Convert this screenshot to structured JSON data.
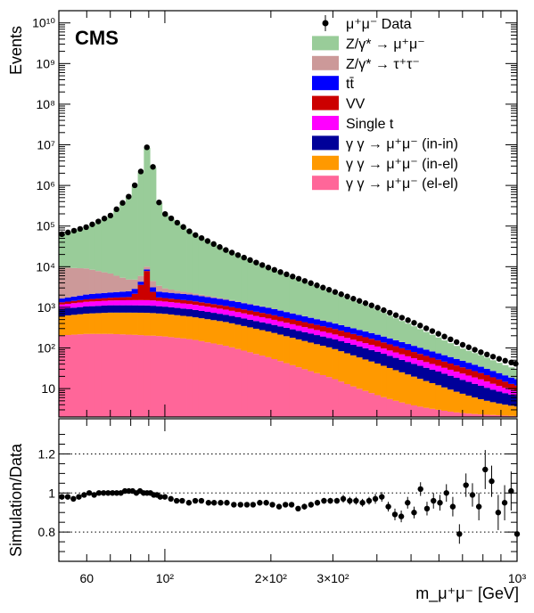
{
  "chart_data": [
    {
      "type": "histogram-stack",
      "experiment_label": "CMS",
      "xlabel": "",
      "ylabel": "Events",
      "x_scale": "log",
      "y_scale": "log",
      "xlim": [
        50,
        1000
      ],
      "ylim": [
        2,
        20000000000
      ],
      "y_tick_labels": [
        "10",
        "10²",
        "10³",
        "10⁴",
        "10⁵",
        "10⁶",
        "10⁷",
        "10⁸",
        "10⁹",
        "10¹⁰"
      ],
      "legend_position": "top-right",
      "legend": [
        {
          "key": "data",
          "label": "μ⁺μ⁻ Data",
          "color": "#000000",
          "marker": "point"
        },
        {
          "key": "dy_mumu",
          "label": "Z/γ* → μ⁺μ⁻",
          "color": "#99cc99"
        },
        {
          "key": "dy_tautau",
          "label": "Z/γ* → τ⁺τ⁻",
          "color": "#cc9999"
        },
        {
          "key": "ttbar",
          "label": "tt̄",
          "color": "#0000ff"
        },
        {
          "key": "vv",
          "label": "VV",
          "color": "#cc0000"
        },
        {
          "key": "single_t",
          "label": "Single t",
          "color": "#ff00ff"
        },
        {
          "key": "gg_inin",
          "label": "γ γ → μ⁺μ⁻ (in-in)",
          "color": "#000099"
        },
        {
          "key": "gg_inel",
          "label": "γ γ → μ⁺μ⁻ (in-el)",
          "color": "#ff9900"
        },
        {
          "key": "gg_elel",
          "label": "γ γ → μ⁺μ⁻ (el-el)",
          "color": "#ff6699"
        }
      ],
      "anchors": {
        "x": [
          50,
          60,
          70,
          80,
          86,
          89,
          91,
          93,
          96,
          100,
          120,
          150,
          200,
          300,
          400,
          500,
          600,
          700,
          800,
          900,
          1000
        ],
        "data": [
          60000,
          95000,
          180000,
          600000,
          2500000,
          9000000,
          9000000,
          2000000,
          400000,
          200000,
          65000,
          25000,
          9000,
          2500,
          1000,
          450,
          220,
          120,
          75,
          52,
          40
        ],
        "dy_mumu": [
          52000,
          85000,
          170000,
          580000,
          2400000,
          8800000,
          8800000,
          1900000,
          380000,
          190000,
          61000,
          22500,
          7500,
          1800,
          650,
          250,
          105,
          48,
          30,
          18,
          13
        ],
        "dy_tautau": [
          8000,
          7000,
          4500,
          2200,
          1600,
          1500,
          1500,
          1300,
          1000,
          600,
          200,
          70,
          20,
          5,
          2,
          1,
          0.5,
          0.3,
          0.2,
          0.1,
          0.1
        ],
        "ttbar": [
          300,
          500,
          600,
          700,
          700,
          700,
          700,
          700,
          680,
          650,
          600,
          450,
          280,
          110,
          60,
          35,
          22,
          15,
          10,
          7,
          5
        ],
        "vv": [
          150,
          200,
          250,
          300,
          2500,
          6500,
          6500,
          500,
          320,
          300,
          250,
          200,
          150,
          80,
          45,
          25,
          15,
          10,
          7,
          5,
          3
        ],
        "single_t": [
          250,
          320,
          350,
          380,
          390,
          390,
          390,
          380,
          370,
          350,
          300,
          220,
          130,
          55,
          28,
          16,
          10,
          7,
          5,
          3,
          2
        ],
        "gg_inin": [
          300,
          350,
          380,
          380,
          380,
          380,
          380,
          370,
          360,
          350,
          300,
          220,
          140,
          70,
          40,
          22,
          14,
          9,
          6,
          4,
          3
        ],
        "gg_inel": [
          400,
          480,
          520,
          530,
          530,
          530,
          530,
          520,
          510,
          500,
          420,
          320,
          190,
          80,
          35,
          17,
          9,
          5,
          3,
          2,
          1.5
        ],
        "gg_elel": [
          200,
          220,
          220,
          210,
          205,
          200,
          200,
          198,
          195,
          190,
          160,
          110,
          55,
          16,
          5,
          2,
          1,
          0.5,
          0.3,
          0.2,
          0.1
        ]
      }
    },
    {
      "type": "scatter",
      "xlabel": "m_μ⁺μ⁻ [GeV]",
      "ylabel": "Simulation/Data",
      "x_scale": "log",
      "xlim": [
        50,
        1000
      ],
      "ylim": [
        0.65,
        1.38
      ],
      "y_ticks": [
        0.8,
        1,
        1.2
      ],
      "y_tick_labels": [
        "0.8",
        "1",
        "1.2"
      ],
      "reference_lines": [
        0.8,
        1.0,
        1.2
      ],
      "x_tick_labels": [
        "60",
        "10²",
        "2×10²",
        "3×10²",
        "10³"
      ],
      "x_ticks": [
        60,
        100,
        200,
        300,
        1000
      ],
      "points": {
        "x": [
          51,
          53,
          55,
          57,
          59,
          61,
          63,
          65,
          67,
          69,
          71,
          73,
          75,
          77,
          79,
          81,
          83,
          85,
          87,
          89,
          91,
          93,
          95,
          97,
          100,
          104,
          108,
          112,
          117,
          122,
          127,
          133,
          138,
          144,
          150,
          157,
          164,
          171,
          178,
          186,
          194,
          202,
          211,
          220,
          229,
          239,
          249,
          260,
          271,
          283,
          295,
          308,
          321,
          335,
          349,
          364,
          380,
          396,
          413,
          431,
          450,
          469,
          489,
          510,
          532,
          555,
          579,
          604,
          630,
          657,
          686,
          716,
          747,
          779,
          812,
          847,
          884,
          922,
          962,
          1000
        ],
        "ratio": [
          0.98,
          0.98,
          0.97,
          0.98,
          0.99,
          1.0,
          0.99,
          1.0,
          1.0,
          1.0,
          1.0,
          1.0,
          1.0,
          1.01,
          1.01,
          1.01,
          1.0,
          1.01,
          1.0,
          1.0,
          1.0,
          0.99,
          0.99,
          0.98,
          0.98,
          0.97,
          0.96,
          0.96,
          0.95,
          0.96,
          0.96,
          0.95,
          0.95,
          0.95,
          0.95,
          0.94,
          0.94,
          0.94,
          0.94,
          0.95,
          0.95,
          0.94,
          0.93,
          0.94,
          0.94,
          0.92,
          0.93,
          0.94,
          0.95,
          0.96,
          0.96,
          0.96,
          0.97,
          0.96,
          0.96,
          0.95,
          0.96,
          0.97,
          0.98,
          0.93,
          0.89,
          0.88,
          0.95,
          0.9,
          1.02,
          0.92,
          0.96,
          0.95,
          1.0,
          0.93,
          0.79,
          1.04,
          0.99,
          0.93,
          1.12,
          1.06,
          0.9,
          0.95,
          1.01,
          0.79
        ],
        "err": [
          0.01,
          0.01,
          0.01,
          0.01,
          0.01,
          0.01,
          0.01,
          0.01,
          0.01,
          0.01,
          0.01,
          0.01,
          0.01,
          0.01,
          0.01,
          0.01,
          0.01,
          0.01,
          0.01,
          0.01,
          0.01,
          0.01,
          0.01,
          0.01,
          0.01,
          0.01,
          0.01,
          0.01,
          0.01,
          0.01,
          0.01,
          0.01,
          0.01,
          0.01,
          0.01,
          0.01,
          0.01,
          0.01,
          0.01,
          0.01,
          0.01,
          0.01,
          0.01,
          0.01,
          0.01,
          0.01,
          0.015,
          0.015,
          0.015,
          0.015,
          0.015,
          0.015,
          0.02,
          0.02,
          0.02,
          0.02,
          0.02,
          0.025,
          0.025,
          0.025,
          0.03,
          0.03,
          0.03,
          0.03,
          0.035,
          0.035,
          0.04,
          0.04,
          0.045,
          0.05,
          0.05,
          0.06,
          0.06,
          0.07,
          0.1,
          0.08,
          0.09,
          0.09,
          0.1,
          0.05
        ]
      }
    }
  ]
}
